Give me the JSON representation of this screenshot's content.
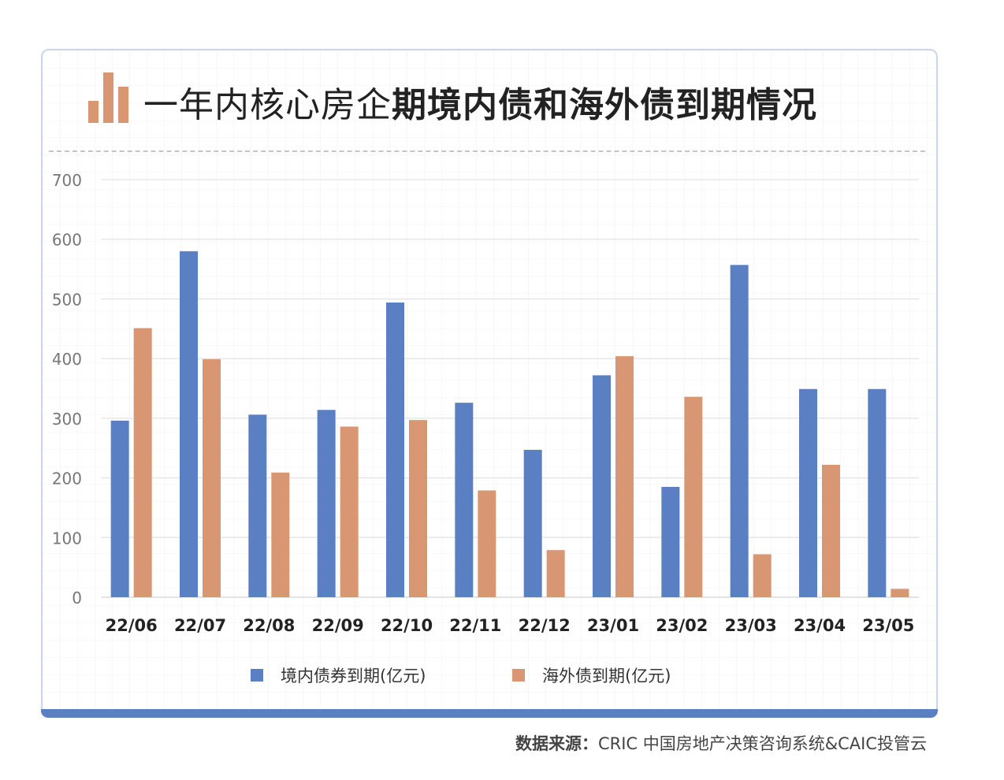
{
  "header": {
    "title_regular": "一年内核心房企",
    "title_bold": "期境内债和海外债到期情况",
    "icon": "bar-chart-icon",
    "icon_color": "#d99672"
  },
  "colors": {
    "domestic": "#5b7fc3",
    "overseas": "#d99672",
    "card_border": "#c9d6ec"
  },
  "chart_data": {
    "type": "bar",
    "categories": [
      "22/06",
      "22/07",
      "22/08",
      "22/09",
      "22/10",
      "22/11",
      "22/12",
      "23/01",
      "23/02",
      "23/03",
      "23/04",
      "23/05"
    ],
    "series": [
      {
        "name": "境内债券到期(亿元)",
        "values": [
          296,
          580,
          306,
          314,
          494,
          326,
          247,
          372,
          185,
          557,
          349,
          349
        ]
      },
      {
        "name": "海外债到期(亿元)",
        "values": [
          451,
          399,
          209,
          286,
          297,
          179,
          79,
          404,
          336,
          72,
          222,
          14
        ]
      }
    ],
    "yticks": [
      "0",
      "100",
      "200",
      "300",
      "400",
      "500",
      "600",
      "700"
    ],
    "ylim": [
      0,
      700
    ],
    "grid": true,
    "legend_position": "bottom"
  },
  "footer": {
    "source_label": "数据来源：",
    "source_text": "CRIC 中国房地产决策咨询系统&CAIC投管云"
  }
}
